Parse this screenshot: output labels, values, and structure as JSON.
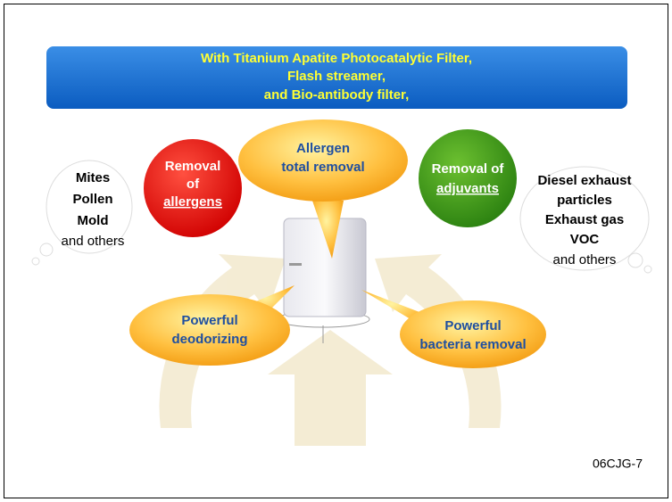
{
  "banner": {
    "lines": [
      "With Titanium Apatite Photocatalytic Filter,",
      "Flash streamer,",
      "and Bio-antibody filter,"
    ]
  },
  "circles": [
    {
      "lines": [
        "Removal",
        "of",
        "allergens"
      ]
    },
    {
      "lines": [
        "Removal of",
        "adjuvants"
      ]
    }
  ],
  "bubbles": [
    {
      "lines": [
        "Allergen",
        "total removal"
      ]
    },
    {
      "lines": [
        "Powerful",
        "deodorizing"
      ]
    },
    {
      "lines": [
        "Powerful",
        "bacteria removal"
      ]
    }
  ],
  "lists": [
    {
      "items": [
        "Mites",
        "Pollen",
        "Mold",
        "and others"
      ]
    },
    {
      "items": [
        "Diesel exhaust",
        "particles",
        "Exhaust gas",
        "VOC",
        "and others"
      ]
    }
  ],
  "footer": "06CJG-7"
}
